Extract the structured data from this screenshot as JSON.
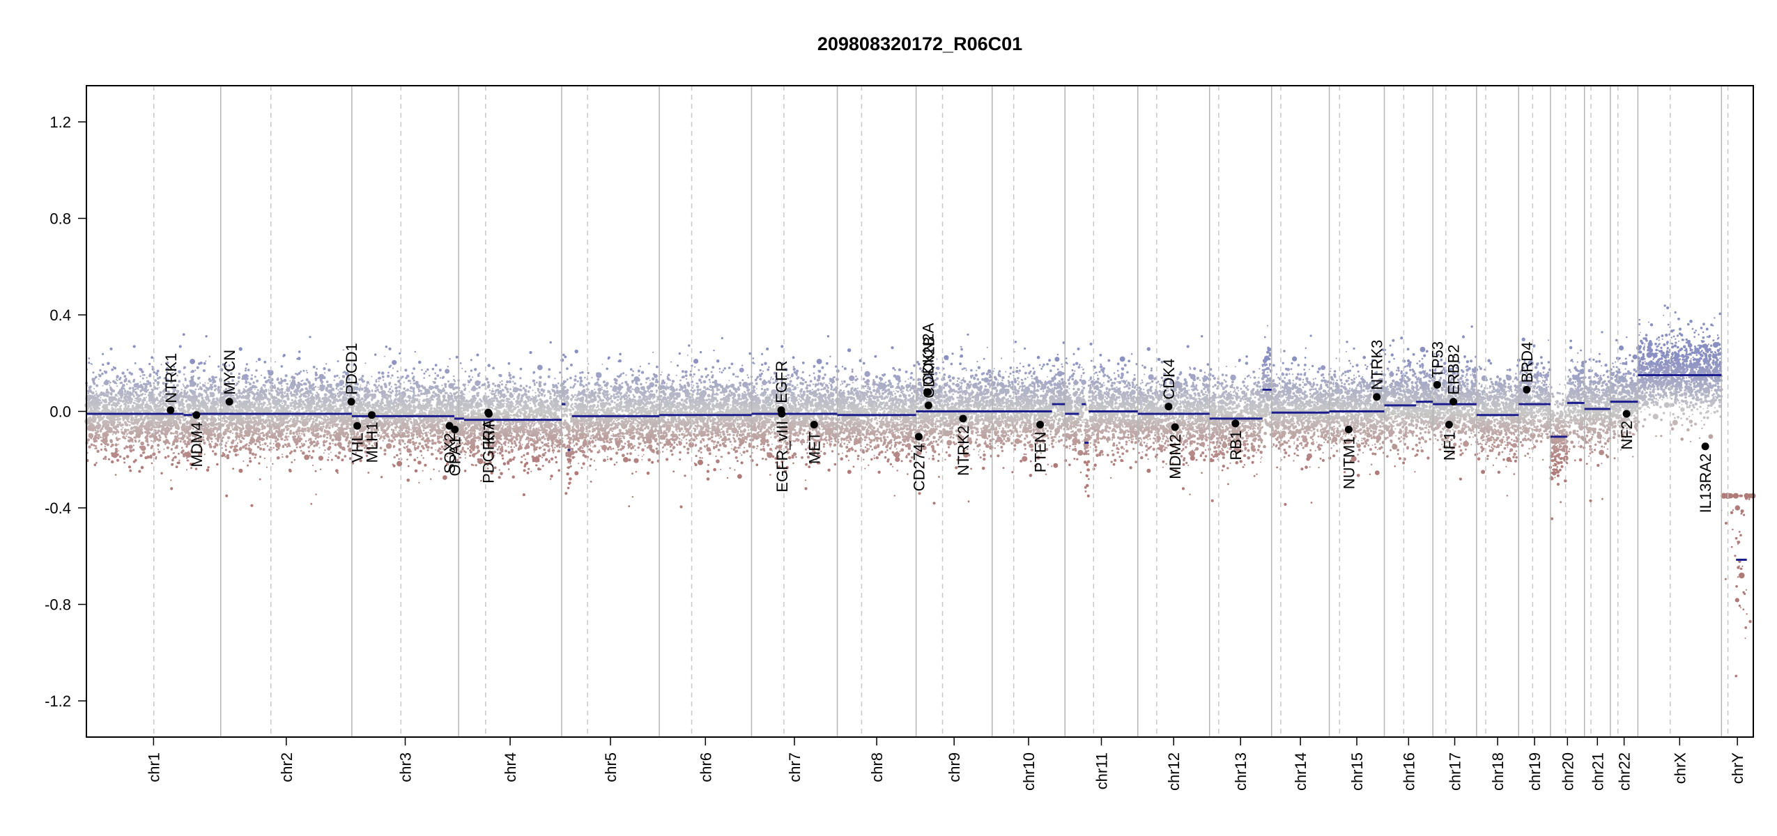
{
  "chart_data": {
    "type": "scatter",
    "title": "209808320172_R06C01",
    "ylim": [
      -1.35,
      1.35
    ],
    "yticks": [
      -1.2,
      -0.8,
      -0.4,
      0.0,
      0.4,
      0.8,
      1.2
    ],
    "ytick_labels": [
      "-1.2",
      "-0.8",
      "-0.4",
      "0.0",
      "0.4",
      "0.8",
      "1.2"
    ],
    "xlabel": "",
    "ylabel": "",
    "chromosomes": [
      {
        "name": "chr1",
        "start": 0,
        "length": 249,
        "centromere": 125
      },
      {
        "name": "chr2",
        "start": 249,
        "length": 243,
        "centromere": 93
      },
      {
        "name": "chr3",
        "start": 492,
        "length": 198,
        "centromere": 91
      },
      {
        "name": "chr4",
        "start": 690,
        "length": 191,
        "centromere": 50
      },
      {
        "name": "chr5",
        "start": 881,
        "length": 181,
        "centromere": 48
      },
      {
        "name": "chr6",
        "start": 1062,
        "length": 171,
        "centromere": 60
      },
      {
        "name": "chr7",
        "start": 1233,
        "length": 159,
        "centromere": 60
      },
      {
        "name": "chr8",
        "start": 1392,
        "length": 146,
        "centromere": 45
      },
      {
        "name": "chr9",
        "start": 1538,
        "length": 141,
        "centromere": 49
      },
      {
        "name": "chr10",
        "start": 1679,
        "length": 135,
        "centromere": 40
      },
      {
        "name": "chr11",
        "start": 1814,
        "length": 135,
        "centromere": 53
      },
      {
        "name": "chr12",
        "start": 1949,
        "length": 133,
        "centromere": 35
      },
      {
        "name": "chr13",
        "start": 2082,
        "length": 115,
        "centromere": 17
      },
      {
        "name": "chr14",
        "start": 2197,
        "length": 107,
        "centromere": 17
      },
      {
        "name": "chr15",
        "start": 2304,
        "length": 102,
        "centromere": 19
      },
      {
        "name": "chr16",
        "start": 2406,
        "length": 90,
        "centromere": 36
      },
      {
        "name": "chr17",
        "start": 2496,
        "length": 81,
        "centromere": 24
      },
      {
        "name": "chr18",
        "start": 2577,
        "length": 78,
        "centromere": 17
      },
      {
        "name": "chr19",
        "start": 2655,
        "length": 59,
        "centromere": 26
      },
      {
        "name": "chr20",
        "start": 2714,
        "length": 63,
        "centromere": 28
      },
      {
        "name": "chr21",
        "start": 2777,
        "length": 48,
        "centromere": 12
      },
      {
        "name": "chr22",
        "start": 2825,
        "length": 51,
        "centromere": 14
      },
      {
        "name": "chrX",
        "start": 2876,
        "length": 155,
        "centromere": 60
      },
      {
        "name": "chrY",
        "start": 3031,
        "length": 59,
        "centromere": 12
      }
    ],
    "genome_length": 3090,
    "segments": [
      {
        "start": 0,
        "end": 180,
        "value": -0.01
      },
      {
        "start": 180,
        "end": 196,
        "value": -0.015
      },
      {
        "start": 196,
        "end": 492,
        "value": -0.01
      },
      {
        "start": 492,
        "end": 682,
        "value": -0.02
      },
      {
        "start": 682,
        "end": 700,
        "value": -0.03
      },
      {
        "start": 700,
        "end": 866,
        "value": -0.035
      },
      {
        "start": 866,
        "end": 881,
        "value": -0.035
      },
      {
        "start": 881,
        "end": 888,
        "value": 0.03
      },
      {
        "start": 892,
        "end": 897,
        "value": -0.16
      },
      {
        "start": 900,
        "end": 1062,
        "value": -0.02
      },
      {
        "start": 1062,
        "end": 1233,
        "value": -0.015
      },
      {
        "start": 1233,
        "end": 1290,
        "value": -0.01
      },
      {
        "start": 1290,
        "end": 1392,
        "value": -0.01
      },
      {
        "start": 1392,
        "end": 1538,
        "value": -0.015
      },
      {
        "start": 1538,
        "end": 1679,
        "value": 0.0
      },
      {
        "start": 1679,
        "end": 1790,
        "value": 0.0
      },
      {
        "start": 1790,
        "end": 1814,
        "value": 0.03
      },
      {
        "start": 1814,
        "end": 1840,
        "value": -0.01
      },
      {
        "start": 1845,
        "end": 1853,
        "value": 0.03
      },
      {
        "start": 1850,
        "end": 1858,
        "value": -0.13
      },
      {
        "start": 1858,
        "end": 1949,
        "value": 0.0
      },
      {
        "start": 1949,
        "end": 2082,
        "value": -0.01
      },
      {
        "start": 2082,
        "end": 2180,
        "value": -0.03
      },
      {
        "start": 2180,
        "end": 2197,
        "value": 0.09
      },
      {
        "start": 2197,
        "end": 2304,
        "value": -0.005
      },
      {
        "start": 2304,
        "end": 2385,
        "value": 0.0
      },
      {
        "start": 2385,
        "end": 2406,
        "value": 0.0
      },
      {
        "start": 2406,
        "end": 2465,
        "value": 0.025
      },
      {
        "start": 2465,
        "end": 2496,
        "value": 0.04
      },
      {
        "start": 2496,
        "end": 2577,
        "value": 0.03
      },
      {
        "start": 2577,
        "end": 2655,
        "value": -0.015
      },
      {
        "start": 2655,
        "end": 2714,
        "value": 0.03
      },
      {
        "start": 2714,
        "end": 2745,
        "value": -0.105
      },
      {
        "start": 2745,
        "end": 2777,
        "value": 0.035
      },
      {
        "start": 2777,
        "end": 2825,
        "value": 0.01
      },
      {
        "start": 2825,
        "end": 2876,
        "value": 0.04
      },
      {
        "start": 2876,
        "end": 3031,
        "value": 0.15
      },
      {
        "start": 3058,
        "end": 3078,
        "value": -0.615
      }
    ],
    "genes": [
      {
        "name": "NTRK1",
        "pos": 156,
        "value": 0.005,
        "label_side": "above"
      },
      {
        "name": "MDM4",
        "pos": 204,
        "value": -0.015,
        "label_side": "below"
      },
      {
        "name": "MYCN",
        "pos": 265,
        "value": 0.04,
        "label_side": "above"
      },
      {
        "name": "PDCD1",
        "pos": 491,
        "value": 0.04,
        "label_side": "above"
      },
      {
        "name": "VHL",
        "pos": 502,
        "value": -0.06,
        "label_side": "below"
      },
      {
        "name": "MLH1",
        "pos": 529,
        "value": -0.015,
        "label_side": "below"
      },
      {
        "name": "SOX2",
        "pos": 673,
        "value": -0.06,
        "label_side": "below"
      },
      {
        "name": "OPA1",
        "pos": 683,
        "value": -0.075,
        "label_side": "below"
      },
      {
        "name": "PDGFRA",
        "pos": 745,
        "value": -0.005,
        "label_side": "below"
      },
      {
        "name": "KIT",
        "pos": 746,
        "value": -0.01,
        "label_side": "below"
      },
      {
        "name": "EGFR",
        "pos": 1288,
        "value": 0.005,
        "label_side": "above"
      },
      {
        "name": "EGFR_vIII",
        "pos": 1289,
        "value": -0.01,
        "label_side": "below"
      },
      {
        "name": "MET",
        "pos": 1349,
        "value": -0.055,
        "label_side": "below"
      },
      {
        "name": "CDKN2A",
        "pos": 1560,
        "value": 0.08,
        "label_side": "above"
      },
      {
        "name": "CDKN2B",
        "pos": 1561,
        "value": 0.025,
        "label_side": "above"
      },
      {
        "name": "CD274",
        "pos": 1543,
        "value": -0.105,
        "label_side": "below"
      },
      {
        "name": "NTRK2",
        "pos": 1625,
        "value": -0.03,
        "label_side": "below"
      },
      {
        "name": "PTEN",
        "pos": 1768,
        "value": -0.055,
        "label_side": "below"
      },
      {
        "name": "CDK4",
        "pos": 2006,
        "value": 0.02,
        "label_side": "above"
      },
      {
        "name": "MDM2",
        "pos": 2018,
        "value": -0.065,
        "label_side": "below"
      },
      {
        "name": "RB1",
        "pos": 2130,
        "value": -0.05,
        "label_side": "below"
      },
      {
        "name": "NUTM1",
        "pos": 2340,
        "value": -0.075,
        "label_side": "below"
      },
      {
        "name": "NTRK3",
        "pos": 2392,
        "value": 0.06,
        "label_side": "above"
      },
      {
        "name": "TP53",
        "pos": 2504,
        "value": 0.11,
        "label_side": "above"
      },
      {
        "name": "ERBB2",
        "pos": 2534,
        "value": 0.04,
        "label_side": "above"
      },
      {
        "name": "NF1",
        "pos": 2526,
        "value": -0.055,
        "label_side": "below"
      },
      {
        "name": "BRD4",
        "pos": 2670,
        "value": 0.09,
        "label_side": "above"
      },
      {
        "name": "NF2",
        "pos": 2855,
        "value": -0.01,
        "label_side": "below"
      },
      {
        "name": "IL13RA2",
        "pos": 3001,
        "value": -0.145,
        "label_side": "below"
      }
    ],
    "colors": {
      "gain": "#8a8fc2",
      "loss": "#b07a78",
      "neutral": "#c8c8c8",
      "segment": "#1c1d8c",
      "gene_point": "#000000",
      "chrom_border": "#b4b4b4",
      "centromere": "#c8c8c8"
    }
  }
}
